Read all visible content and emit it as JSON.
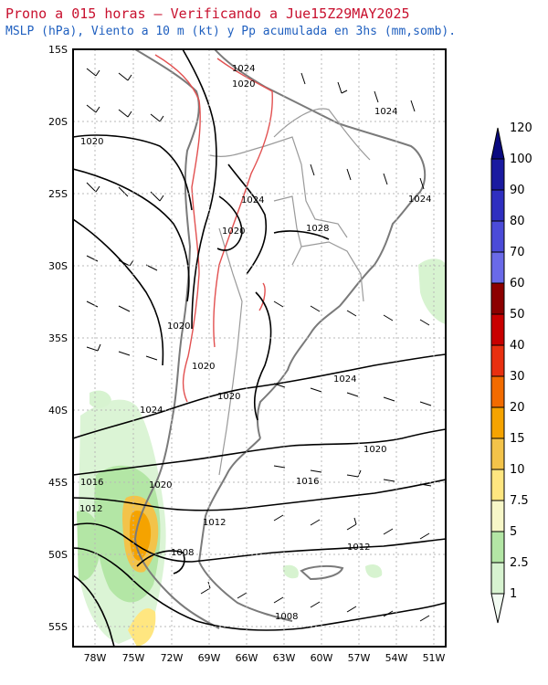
{
  "header": {
    "title": "Prono a 015 horas — Verificando a Jue15Z29MAY2025",
    "subtitle": "MSLP (hPa), Viento a 10 m (kt) y Pp acumulada en 3hs (mm,somb)."
  },
  "axes": {
    "lat_labels": [
      "15S",
      "20S",
      "25S",
      "30S",
      "35S",
      "40S",
      "45S",
      "50S",
      "55S"
    ],
    "lon_labels": [
      "78W",
      "75W",
      "72W",
      "69W",
      "66W",
      "63W",
      "60W",
      "57W",
      "54W",
      "51W"
    ]
  },
  "isobars": {
    "labels": [
      "1024",
      "1020",
      "1024",
      "1020",
      "1024",
      "1028",
      "1020",
      "1020",
      "1024",
      "1020",
      "1020",
      "1024",
      "1020",
      "1016",
      "1020",
      "1016",
      "1012",
      "1012",
      "1012",
      "1008",
      "1008"
    ]
  },
  "colorbar": {
    "levels": [
      "1",
      "2.5",
      "5",
      "7.5",
      "10",
      "15",
      "20",
      "30",
      "40",
      "50",
      "60",
      "70",
      "80",
      "90",
      "100",
      "120"
    ],
    "colors": [
      "#f2fbf2",
      "#d7f3d0",
      "#b3e6a5",
      "#f7f7c8",
      "#ffe680",
      "#f3c34a",
      "#f5a300",
      "#f26b00",
      "#e83010",
      "#c80000",
      "#8c0000",
      "#6a6ae8",
      "#4b4bd8",
      "#2f2fc0",
      "#1a1aa0",
      "#0a0a80"
    ]
  }
}
